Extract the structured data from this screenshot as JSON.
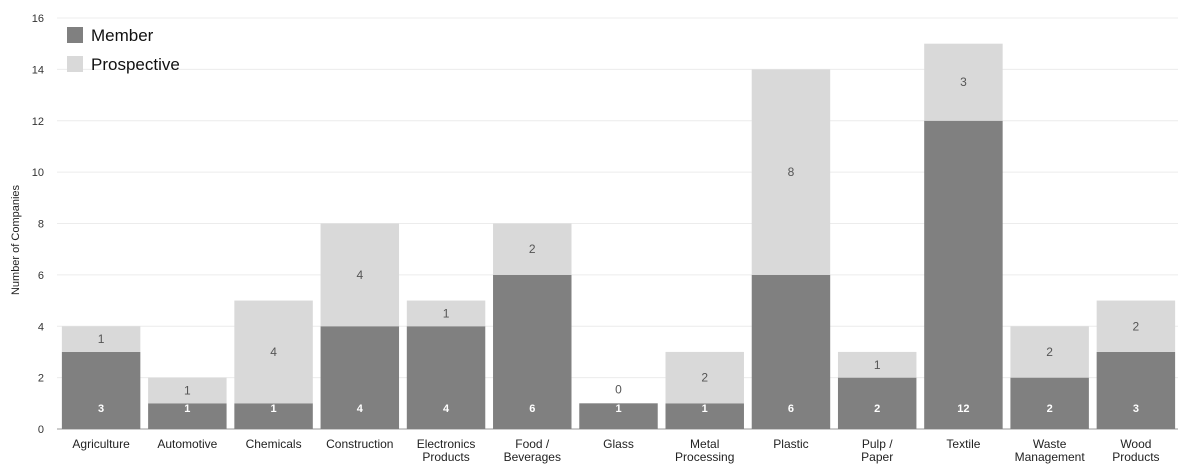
{
  "chart_data": {
    "type": "bar",
    "stacked": true,
    "categories": [
      [
        "Agriculture"
      ],
      [
        "Automotive"
      ],
      [
        "Chemicals"
      ],
      [
        "Construction"
      ],
      [
        "Electronics",
        "Products"
      ],
      [
        "Food /",
        "Beverages"
      ],
      [
        "Glass"
      ],
      [
        "Metal",
        "Processing"
      ],
      [
        "Plastic"
      ],
      [
        "Pulp /",
        "Paper"
      ],
      [
        "Textile"
      ],
      [
        "Waste",
        "Management"
      ],
      [
        "Wood",
        "Products"
      ]
    ],
    "series": [
      {
        "name": "Member",
        "color": "#808080",
        "values": [
          3,
          1,
          1,
          4,
          4,
          6,
          1,
          1,
          6,
          2,
          12,
          2,
          3
        ]
      },
      {
        "name": "Prospective",
        "color": "#d9d9d9",
        "values": [
          1,
          1,
          4,
          4,
          1,
          2,
          0,
          2,
          8,
          1,
          3,
          2,
          2
        ]
      }
    ],
    "ylabel": "Number of Companies",
    "ylim": [
      0,
      16
    ],
    "yticks": [
      0,
      2,
      4,
      6,
      8,
      10,
      12,
      14,
      16
    ],
    "grid": true,
    "legend_position": "top-left"
  }
}
